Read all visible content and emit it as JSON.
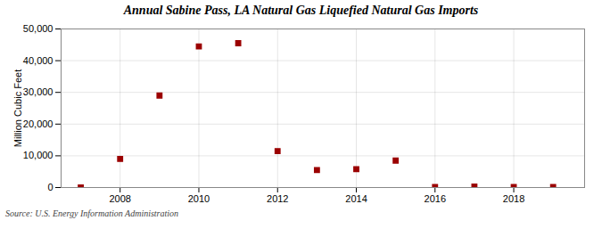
{
  "chart_data": {
    "type": "scatter",
    "title": "Annual Sabine Pass, LA Natural Gas Liquefied Natural Gas Imports",
    "ylabel": "Million Cubic Feet",
    "caption": "Source: U.S. Energy Information Administration",
    "x": [
      2007,
      2008,
      2009,
      2010,
      2011,
      2012,
      2013,
      2014,
      2015,
      2016,
      2017,
      2018,
      2019
    ],
    "values": [
      10,
      9000,
      29000,
      44500,
      45500,
      11500,
      5500,
      5800,
      8500,
      200,
      300,
      200,
      200
    ],
    "color": "#9B0000",
    "marker": "square",
    "xlim": [
      2006.5,
      2019.8
    ],
    "xticks": [
      2008,
      2010,
      2012,
      2014,
      2016,
      2018
    ],
    "ylim": [
      0,
      50000
    ],
    "yticks": [
      0,
      {
        "value": 10000,
        "label": "10,000"
      },
      {
        "value": 20000,
        "label": "20,000"
      },
      {
        "value": 30000,
        "label": "30,000"
      },
      {
        "value": 40000,
        "label": "40,000"
      },
      {
        "value": 50000,
        "label": "50,000"
      }
    ],
    "grid": true
  }
}
